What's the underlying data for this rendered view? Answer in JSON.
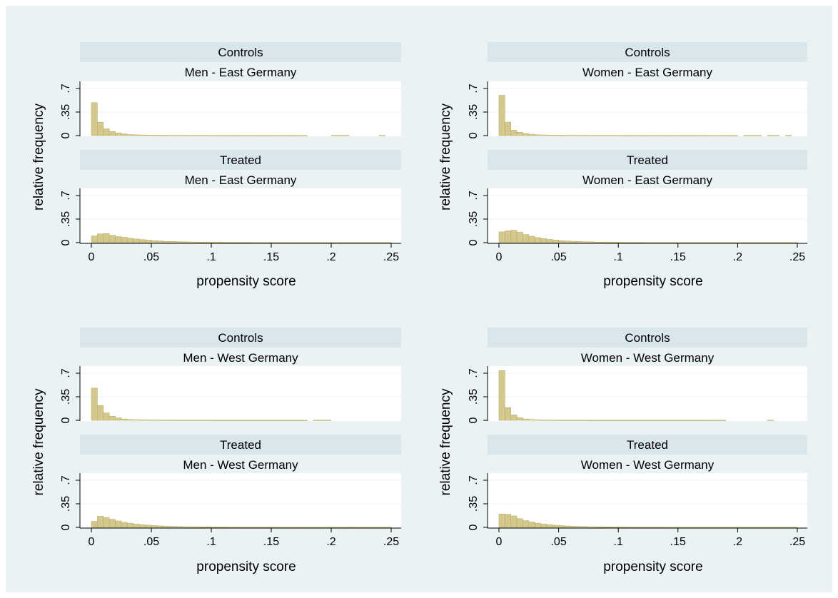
{
  "colors": {
    "background": "#ffffff",
    "outer_panel": "#eaf2f3",
    "strip": "#d9e6eb",
    "plot_area": "#ffffff",
    "gridline": "#eaf2f3",
    "bar_fill": "#d3c98f",
    "bar_stroke": "#b5a85f",
    "axis": "#000000"
  },
  "ylabel": "relative frequency",
  "xlabel": "propensity score",
  "xticks": [
    {
      "value": 0,
      "label": "0"
    },
    {
      "value": 0.05,
      "label": ".05"
    },
    {
      "value": 0.1,
      "label": ".1"
    },
    {
      "value": 0.15,
      "label": ".15"
    },
    {
      "value": 0.2,
      "label": ".2"
    },
    {
      "value": 0.25,
      "label": ".25"
    }
  ],
  "yticks": [
    {
      "value": 0,
      "label": "0"
    },
    {
      "value": 0.35,
      "label": ".35"
    },
    {
      "value": 0.7,
      "label": ".7"
    }
  ],
  "chart_data": [
    {
      "type": "bar",
      "group": "Men - East Germany",
      "panels": [
        {
          "strip": "Controls",
          "subtitle": "Men - East Germany",
          "bin_width": 0.005,
          "x_start": 0,
          "values": [
            0.49,
            0.2,
            0.1,
            0.06,
            0.04,
            0.025,
            0.015,
            0.012,
            0.01,
            0.008,
            0.007,
            0.006,
            0.005,
            0.005,
            0.004,
            0.004,
            0.003,
            0.003,
            0.003,
            0.003,
            0.002,
            0.002,
            0.002,
            0.002,
            0.002,
            0.002,
            0.002,
            0.002,
            0.002,
            0.002,
            0.002,
            0.002,
            0.002,
            0.002,
            0.002,
            0.002,
            0.0,
            0.0,
            0.0,
            0.0,
            0.004,
            0.004,
            0.004,
            0.0,
            0.0,
            0.0,
            0.0,
            0.0,
            0.004,
            0.0
          ]
        },
        {
          "strip": "Treated",
          "subtitle": "Men - East Germany",
          "bin_width": 0.005,
          "x_start": 0,
          "values": [
            0.1,
            0.13,
            0.135,
            0.11,
            0.09,
            0.08,
            0.065,
            0.055,
            0.045,
            0.038,
            0.03,
            0.025,
            0.02,
            0.017,
            0.014,
            0.012,
            0.01,
            0.009,
            0.008,
            0.007,
            0.006,
            0.006,
            0.005,
            0.005,
            0.004,
            0.004,
            0.004,
            0.003,
            0.003,
            0.003,
            0.003,
            0.003,
            0.003,
            0.002,
            0.002,
            0.002,
            0.002,
            0.002,
            0.002,
            0.002,
            0.002,
            0.002,
            0.002,
            0.002,
            0.002,
            0.002,
            0.002,
            0.002,
            0.002,
            0.002
          ]
        }
      ]
    },
    {
      "type": "bar",
      "group": "Women - East Germany",
      "panels": [
        {
          "strip": "Controls",
          "subtitle": "Women - East Germany",
          "bin_width": 0.005,
          "x_start": 0,
          "values": [
            0.6,
            0.2,
            0.08,
            0.05,
            0.03,
            0.02,
            0.012,
            0.01,
            0.008,
            0.007,
            0.006,
            0.005,
            0.005,
            0.004,
            0.004,
            0.003,
            0.003,
            0.003,
            0.003,
            0.003,
            0.002,
            0.002,
            0.002,
            0.002,
            0.002,
            0.002,
            0.002,
            0.002,
            0.002,
            0.002,
            0.002,
            0.002,
            0.002,
            0.002,
            0.002,
            0.002,
            0.002,
            0.002,
            0.002,
            0.002,
            0.0,
            0.004,
            0.004,
            0.004,
            0.0,
            0.004,
            0.004,
            0.0,
            0.004,
            0.0
          ]
        },
        {
          "strip": "Treated",
          "subtitle": "Women - East Germany",
          "bin_width": 0.005,
          "x_start": 0,
          "values": [
            0.16,
            0.175,
            0.185,
            0.155,
            0.12,
            0.095,
            0.075,
            0.06,
            0.048,
            0.038,
            0.03,
            0.025,
            0.02,
            0.016,
            0.013,
            0.011,
            0.009,
            0.008,
            0.007,
            0.006,
            0.005,
            0.005,
            0.004,
            0.004,
            0.004,
            0.003,
            0.003,
            0.003,
            0.003,
            0.003,
            0.002,
            0.002,
            0.002,
            0.002,
            0.002,
            0.002,
            0.002,
            0.002,
            0.002,
            0.002,
            0.002,
            0.002,
            0.002,
            0.002,
            0.002,
            0.002,
            0.002,
            0.002,
            0.002,
            0.002
          ]
        }
      ]
    },
    {
      "type": "bar",
      "group": "Men - West Germany",
      "panels": [
        {
          "strip": "Controls",
          "subtitle": "Men - West Germany",
          "bin_width": 0.005,
          "x_start": 0,
          "values": [
            0.48,
            0.22,
            0.11,
            0.06,
            0.035,
            0.02,
            0.012,
            0.01,
            0.008,
            0.007,
            0.006,
            0.005,
            0.004,
            0.004,
            0.003,
            0.003,
            0.003,
            0.003,
            0.003,
            0.003,
            0.002,
            0.002,
            0.002,
            0.002,
            0.002,
            0.002,
            0.002,
            0.002,
            0.002,
            0.002,
            0.002,
            0.002,
            0.002,
            0.002,
            0.002,
            0.002,
            0.0,
            0.004,
            0.004,
            0.004,
            0.0,
            0.0,
            0.0,
            0.0,
            0.0,
            0.0,
            0.0,
            0.0,
            0.0,
            0.0
          ]
        },
        {
          "strip": "Treated",
          "subtitle": "Men - West Germany",
          "bin_width": 0.005,
          "x_start": 0,
          "values": [
            0.09,
            0.165,
            0.145,
            0.12,
            0.095,
            0.075,
            0.06,
            0.05,
            0.04,
            0.033,
            0.027,
            0.022,
            0.018,
            0.015,
            0.012,
            0.01,
            0.009,
            0.008,
            0.007,
            0.006,
            0.005,
            0.005,
            0.004,
            0.004,
            0.004,
            0.003,
            0.003,
            0.003,
            0.003,
            0.003,
            0.003,
            0.002,
            0.002,
            0.002,
            0.002,
            0.002,
            0.002,
            0.002,
            0.002,
            0.002,
            0.002,
            0.002,
            0.002,
            0.004,
            0.002,
            0.002,
            0.002,
            0.002,
            0.002,
            0.002
          ]
        }
      ]
    },
    {
      "type": "bar",
      "group": "Women - West Germany",
      "panels": [
        {
          "strip": "Controls",
          "subtitle": "Women - West Germany",
          "bin_width": 0.005,
          "x_start": 0,
          "values": [
            0.74,
            0.19,
            0.08,
            0.04,
            0.02,
            0.012,
            0.008,
            0.006,
            0.005,
            0.004,
            0.004,
            0.003,
            0.003,
            0.003,
            0.003,
            0.002,
            0.002,
            0.002,
            0.002,
            0.002,
            0.002,
            0.002,
            0.002,
            0.002,
            0.002,
            0.002,
            0.002,
            0.002,
            0.002,
            0.002,
            0.002,
            0.002,
            0.002,
            0.002,
            0.002,
            0.002,
            0.002,
            0.002,
            0.0,
            0.0,
            0.0,
            0.0,
            0.0,
            0.0,
            0.0,
            0.004,
            0.0,
            0.0,
            0.0,
            0.0
          ]
        },
        {
          "strip": "Treated",
          "subtitle": "Women - West Germany",
          "bin_width": 0.005,
          "x_start": 0,
          "values": [
            0.2,
            0.195,
            0.17,
            0.13,
            0.1,
            0.08,
            0.063,
            0.05,
            0.04,
            0.032,
            0.026,
            0.021,
            0.017,
            0.014,
            0.011,
            0.009,
            0.008,
            0.007,
            0.006,
            0.005,
            0.005,
            0.004,
            0.004,
            0.003,
            0.003,
            0.003,
            0.003,
            0.003,
            0.002,
            0.002,
            0.002,
            0.002,
            0.002,
            0.002,
            0.002,
            0.002,
            0.002,
            0.002,
            0.002,
            0.002,
            0.002,
            0.002,
            0.002,
            0.002,
            0.002,
            0.002,
            0.002,
            0.002,
            0.002,
            0.002
          ]
        }
      ]
    }
  ],
  "xlim": [
    0,
    0.25
  ],
  "ylim": [
    0,
    0.7
  ]
}
